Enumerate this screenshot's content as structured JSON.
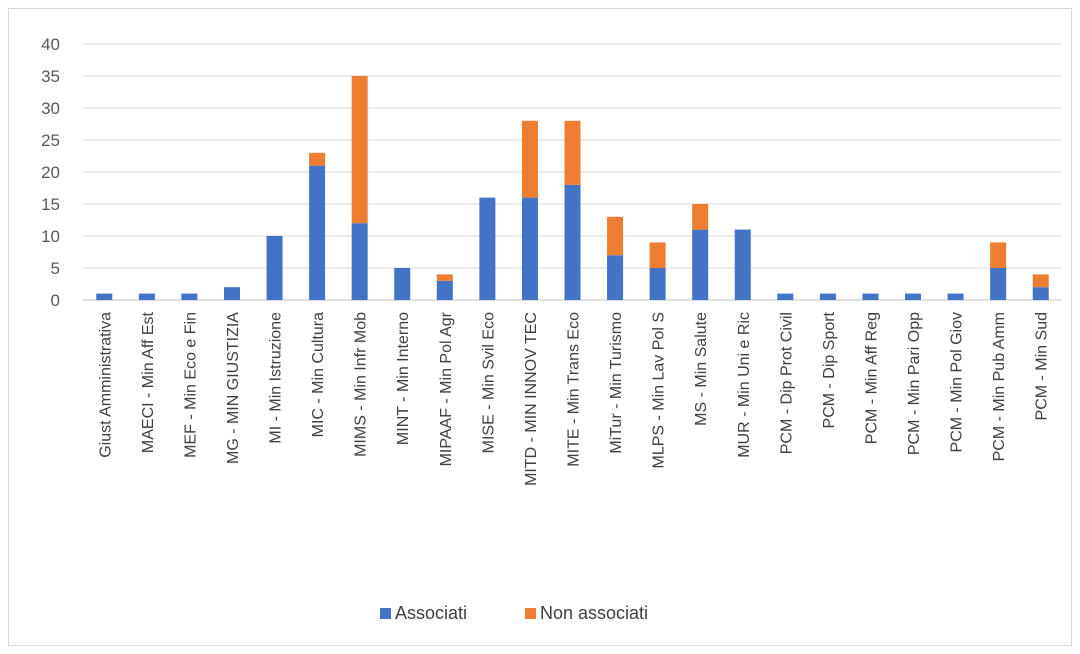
{
  "chart_data": {
    "type": "bar",
    "stacked": true,
    "categories": [
      "Giust Amministrativa",
      "MAECI - Min Aff Est",
      "MEF - Min Eco e Fin",
      "MG - MIN GIUSTIZIA",
      "MI - Min Istruzione",
      "MIC - Min Cultura",
      "MIMS - Min Infr Mob",
      "MINT - Min Interno",
      "MIPAAF - Min Pol Agr",
      "MISE - Min Svil Eco",
      "MITD - MIN INNOV TEC",
      "MITE - Min Trans Eco",
      "MiTur - Min Turismo",
      "MLPS - Min Lav Pol S",
      "MS - Min Salute",
      "MUR - Min Uni e Ric",
      "PCM - Dip Prot Civil",
      "PCM - Dip Sport",
      "PCM - Min Aff Reg",
      "PCM - Min Pari Opp",
      "PCM - Min Pol Giov",
      "PCM - Min Pub Amm",
      "PCM - Min Sud"
    ],
    "series": [
      {
        "name": "Associati",
        "color": "#4472c4",
        "values": [
          1,
          1,
          1,
          2,
          10,
          21,
          12,
          5,
          3,
          16,
          16,
          18,
          7,
          5,
          11,
          11,
          1,
          1,
          1,
          1,
          1,
          5,
          2
        ]
      },
      {
        "name": "Non associati",
        "color": "#ed7d31",
        "values": [
          0,
          0,
          0,
          0,
          0,
          2,
          23,
          0,
          1,
          0,
          12,
          10,
          6,
          4,
          4,
          0,
          0,
          0,
          0,
          0,
          0,
          4,
          2
        ]
      }
    ],
    "y_ticks": [
      "0",
      "5",
      "10",
      "15",
      "20",
      "25",
      "30",
      "35",
      "40"
    ],
    "ylim": [
      0,
      40
    ],
    "grid": true,
    "legend_position": "bottom",
    "title": "",
    "xlabel": "",
    "ylabel": ""
  }
}
